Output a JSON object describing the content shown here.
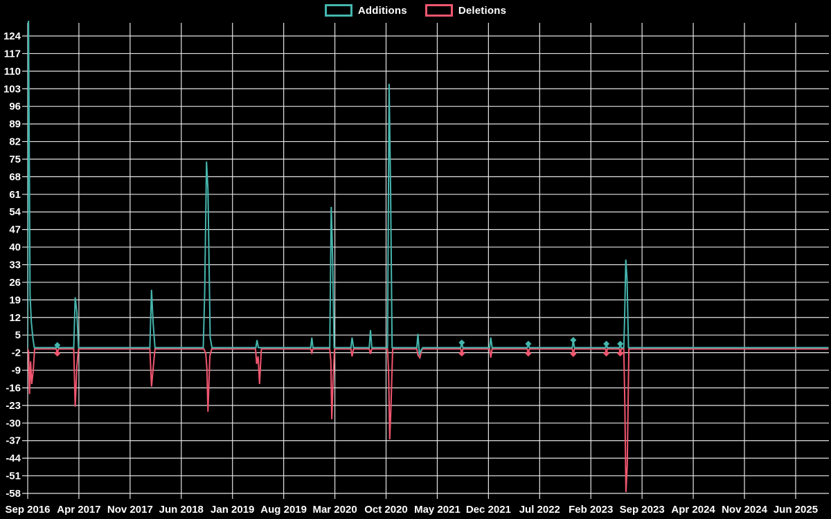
{
  "legend": {
    "items": [
      {
        "label": "Additions",
        "color": "#45b6ae"
      },
      {
        "label": "Deletions",
        "color": "#f2566f"
      }
    ]
  },
  "chart_data": {
    "type": "line",
    "title": "",
    "xlabel": "",
    "ylabel": "",
    "background_color": "#000000",
    "grid_color": "#e6e6e6",
    "text_color": "#ffffff",
    "legend_position": "top-center",
    "grid": "on",
    "x_unit": "months_after_Sep_2016",
    "x_axis": {
      "tick_labels": [
        "Sep 2016",
        "Apr 2017",
        "Nov 2017",
        "Jun 2018",
        "Jan 2019",
        "Aug 2019",
        "Mar 2020",
        "Oct 2020",
        "May 2021",
        "Dec 2021",
        "Jul 2022",
        "Feb 2023",
        "Sep 2023",
        "Apr 2024",
        "Nov 2024",
        "Jun 2025"
      ],
      "tick_month_offsets": [
        0,
        7,
        14,
        21,
        28,
        35,
        42,
        49,
        56,
        63,
        70,
        77,
        84,
        91,
        98,
        105
      ],
      "range_months": [
        0,
        109.5
      ]
    },
    "y_axis": {
      "ticks": [
        124,
        117,
        110,
        103,
        96,
        89,
        82,
        75,
        68,
        61,
        54,
        47,
        40,
        33,
        26,
        19,
        12,
        5,
        -2,
        -9,
        -16,
        -23,
        -30,
        -37,
        -44,
        -51,
        -58
      ],
      "min": -58,
      "max": 124,
      "step": 7
    },
    "series": [
      {
        "name": "Additions",
        "color": "#45b6ae",
        "points": [
          [
            0,
            0
          ],
          [
            0.1,
            135
          ],
          [
            0.32,
            21
          ],
          [
            0.5,
            10
          ],
          [
            0.7,
            4
          ],
          [
            0.9,
            0
          ],
          [
            3.9,
            0
          ],
          [
            4.05,
            1
          ],
          [
            4.2,
            0
          ],
          [
            6.3,
            0
          ],
          [
            6.5,
            20
          ],
          [
            6.72,
            14
          ],
          [
            6.95,
            0
          ],
          [
            16.7,
            0
          ],
          [
            16.93,
            23
          ],
          [
            17.15,
            10
          ],
          [
            17.4,
            0
          ],
          [
            24.0,
            0
          ],
          [
            24.2,
            22
          ],
          [
            24.45,
            74
          ],
          [
            24.65,
            63
          ],
          [
            24.95,
            4
          ],
          [
            25.2,
            0
          ],
          [
            31.2,
            0
          ],
          [
            31.35,
            3
          ],
          [
            31.55,
            0
          ],
          [
            38.7,
            0
          ],
          [
            38.85,
            4
          ],
          [
            39.0,
            0
          ],
          [
            41.3,
            0
          ],
          [
            41.5,
            56
          ],
          [
            41.7,
            35
          ],
          [
            41.9,
            0
          ],
          [
            44.2,
            0
          ],
          [
            44.35,
            4
          ],
          [
            44.55,
            0
          ],
          [
            46.7,
            0
          ],
          [
            46.87,
            7
          ],
          [
            47.05,
            0
          ],
          [
            49.2,
            0
          ],
          [
            49.42,
            105
          ],
          [
            49.62,
            61
          ],
          [
            49.82,
            0
          ],
          [
            53.2,
            0
          ],
          [
            53.35,
            5.5
          ],
          [
            53.55,
            -2.5
          ],
          [
            53.8,
            -1
          ],
          [
            54.0,
            0
          ],
          [
            59.2,
            0
          ],
          [
            59.35,
            2
          ],
          [
            59.5,
            0
          ],
          [
            63.15,
            0
          ],
          [
            63.32,
            4
          ],
          [
            63.5,
            0
          ],
          [
            68.3,
            0
          ],
          [
            68.45,
            1.5
          ],
          [
            68.6,
            0
          ],
          [
            74.45,
            0
          ],
          [
            74.6,
            3
          ],
          [
            74.75,
            0
          ],
          [
            79.0,
            0
          ],
          [
            79.12,
            1.5
          ],
          [
            79.25,
            0
          ],
          [
            80.9,
            0
          ],
          [
            81.02,
            1.5
          ],
          [
            81.15,
            0
          ],
          [
            81.5,
            0
          ],
          [
            81.62,
            12
          ],
          [
            81.78,
            35
          ],
          [
            81.95,
            27
          ],
          [
            82.15,
            0
          ],
          [
            109.5,
            0
          ]
        ]
      },
      {
        "name": "Deletions",
        "color": "#f2566f",
        "points": [
          [
            0,
            0
          ],
          [
            0.12,
            -1
          ],
          [
            0.25,
            -18
          ],
          [
            0.4,
            -5
          ],
          [
            0.55,
            -14
          ],
          [
            0.75,
            -9
          ],
          [
            0.95,
            0
          ],
          [
            3.9,
            0
          ],
          [
            4.05,
            -1.8
          ],
          [
            4.2,
            0
          ],
          [
            6.3,
            0
          ],
          [
            6.5,
            -23
          ],
          [
            6.72,
            -7
          ],
          [
            6.95,
            0
          ],
          [
            16.7,
            0
          ],
          [
            16.93,
            -15
          ],
          [
            17.15,
            -8
          ],
          [
            17.4,
            0
          ],
          [
            24.1,
            0
          ],
          [
            24.35,
            -2
          ],
          [
            24.5,
            -8
          ],
          [
            24.65,
            -25
          ],
          [
            24.9,
            -3
          ],
          [
            25.15,
            0
          ],
          [
            31.15,
            0
          ],
          [
            31.3,
            -6
          ],
          [
            31.5,
            -3
          ],
          [
            31.7,
            -14
          ],
          [
            31.95,
            0
          ],
          [
            38.7,
            0
          ],
          [
            38.85,
            -1.5
          ],
          [
            39.0,
            0
          ],
          [
            41.3,
            0
          ],
          [
            41.45,
            -5
          ],
          [
            41.58,
            -28
          ],
          [
            41.75,
            -14
          ],
          [
            41.95,
            0
          ],
          [
            44.2,
            0
          ],
          [
            44.35,
            -3
          ],
          [
            44.55,
            0
          ],
          [
            46.7,
            0
          ],
          [
            46.87,
            -2
          ],
          [
            47.05,
            0
          ],
          [
            49.2,
            0
          ],
          [
            49.35,
            -10
          ],
          [
            49.5,
            -36
          ],
          [
            49.68,
            -22
          ],
          [
            49.9,
            0
          ],
          [
            53.2,
            0
          ],
          [
            53.35,
            -2.5
          ],
          [
            53.62,
            -3.5
          ],
          [
            53.9,
            0
          ],
          [
            59.2,
            0
          ],
          [
            59.35,
            -1.8
          ],
          [
            59.5,
            0
          ],
          [
            63.15,
            0
          ],
          [
            63.32,
            -3.5
          ],
          [
            63.5,
            0
          ],
          [
            68.3,
            0
          ],
          [
            68.45,
            -1.8
          ],
          [
            68.6,
            0
          ],
          [
            74.45,
            0
          ],
          [
            74.6,
            -2
          ],
          [
            74.75,
            0
          ],
          [
            79.0,
            0
          ],
          [
            79.12,
            -1.8
          ],
          [
            79.25,
            0
          ],
          [
            80.9,
            0
          ],
          [
            81.02,
            -1.8
          ],
          [
            81.15,
            0
          ],
          [
            81.5,
            0
          ],
          [
            81.65,
            -22
          ],
          [
            81.8,
            -57
          ],
          [
            81.98,
            -46
          ],
          [
            82.2,
            0
          ],
          [
            109.5,
            0
          ]
        ]
      }
    ],
    "markers": [
      {
        "month": 4.05,
        "additions": 1.0,
        "deletions": -1.8
      },
      {
        "month": 59.35,
        "additions": 2.0,
        "deletions": -1.8
      },
      {
        "month": 68.45,
        "additions": 1.5,
        "deletions": -1.8
      },
      {
        "month": 74.6,
        "additions": 3.0,
        "deletions": -2.0
      },
      {
        "month": 79.12,
        "additions": 1.5,
        "deletions": -1.8
      },
      {
        "month": 81.02,
        "additions": 1.5,
        "deletions": -1.8
      }
    ]
  }
}
